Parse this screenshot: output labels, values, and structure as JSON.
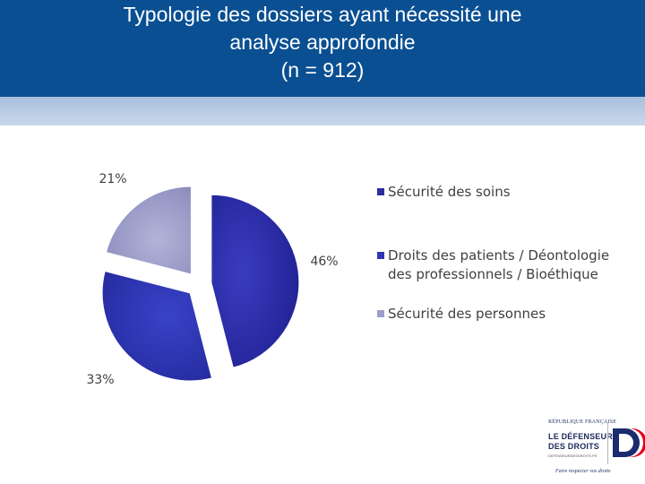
{
  "slide": {
    "title_lines": [
      "Typologie des dossiers ayant nécessité une",
      "analyse approfondie",
      "(n = 912)"
    ],
    "colors": {
      "header": "#0a4f92",
      "band": "#b3c7e1"
    }
  },
  "chart_data": {
    "type": "pie",
    "title": "Typologie des dossiers ayant nécessité une analyse approfondie (n = 912)",
    "exploded": true,
    "slices": [
      {
        "name": "Sécurité des soins",
        "value": 46,
        "label": "46%",
        "color": "#2b2da0"
      },
      {
        "name": "Droits des patients / Déontologie des professionnels / Bioéthique",
        "value": 33,
        "label": "33%",
        "color": "#2f36b5"
      },
      {
        "name": "Sécurité des personnes",
        "value": 21,
        "label": "21%",
        "color": "#9d9ec9"
      }
    ],
    "legend": {
      "placement": "right",
      "entries": [
        {
          "lines": [
            "Sécurité des soins"
          ],
          "color": "#2b2da0"
        },
        {
          "lines": [
            "Droits des patients / Déontologie",
            "des professionnels / Bioéthique"
          ],
          "color": "#2f36b5"
        },
        {
          "lines": [
            "Sécurité des personnes"
          ],
          "color": "#9d9ec9"
        }
      ]
    }
  },
  "logo": {
    "republique": "RÉPUBLIQUE FRANÇAISE",
    "name_line1": "LE DÉFENSEUR",
    "name_line2": "DES DROITS",
    "url": "DEFENSEURDESDROITS.FR",
    "tagline": "Faire respecter vos droits"
  }
}
